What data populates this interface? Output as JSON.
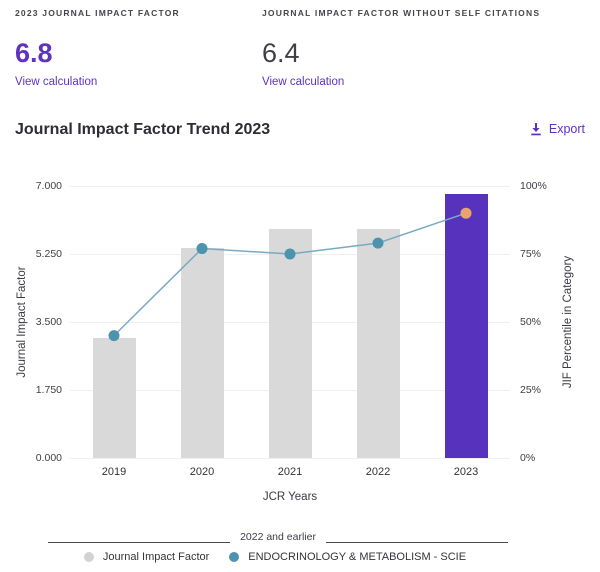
{
  "metrics": {
    "jif": {
      "label": "2023 JOURNAL IMPACT FACTOR",
      "value": "6.8",
      "link": "View calculation"
    },
    "jif_without_self": {
      "label": "JOURNAL IMPACT FACTOR WITHOUT SELF CITATIONS",
      "value": "6.4",
      "link": "View calculation"
    }
  },
  "trend": {
    "title": "Journal Impact Factor Trend 2023",
    "export_label": "Export"
  },
  "chart_data": {
    "type": "bar",
    "categories": [
      "2019",
      "2020",
      "2021",
      "2022",
      "2023"
    ],
    "series": [
      {
        "name": "Journal Impact Factor",
        "type": "bar",
        "axis": "left",
        "values": [
          3.1,
          5.4,
          5.9,
          5.9,
          6.8
        ]
      },
      {
        "name": "ENDOCRINOLOGY & METABOLISM - SCIE",
        "type": "line",
        "axis": "right",
        "values": [
          45,
          77,
          75,
          79,
          90
        ]
      }
    ],
    "title": "Journal Impact Factor Trend 2023",
    "xlabel": "JCR Years",
    "ylabel_left": "Journal Impact Factor",
    "ylabel_right": "JIF Percentile in Category",
    "yticks_left": [
      "7.000",
      "5.250",
      "3.500",
      "1.750",
      "0.000"
    ],
    "yticks_right": [
      "100%",
      "75%",
      "50%",
      "25%",
      "0%"
    ],
    "ylim_left": [
      0,
      7
    ],
    "ylim_right": [
      0,
      100
    ],
    "highlight_year": "2023",
    "grid": "horizontal"
  },
  "legend": {
    "separator_label": "2022 and earlier",
    "items": [
      {
        "label": "Journal Impact Factor"
      },
      {
        "label": "ENDOCRINOLOGY & METABOLISM - SCIE"
      }
    ]
  },
  "colors": {
    "accent_purple": "#5e33bf",
    "bar_gray": "#d9d9d9",
    "bar_highlight": "#5733bd",
    "line": "#78abc2",
    "dot": "#4e93ad",
    "dot_highlight": "#eaa36c",
    "legend_gray_dot": "#d2d2d4"
  }
}
